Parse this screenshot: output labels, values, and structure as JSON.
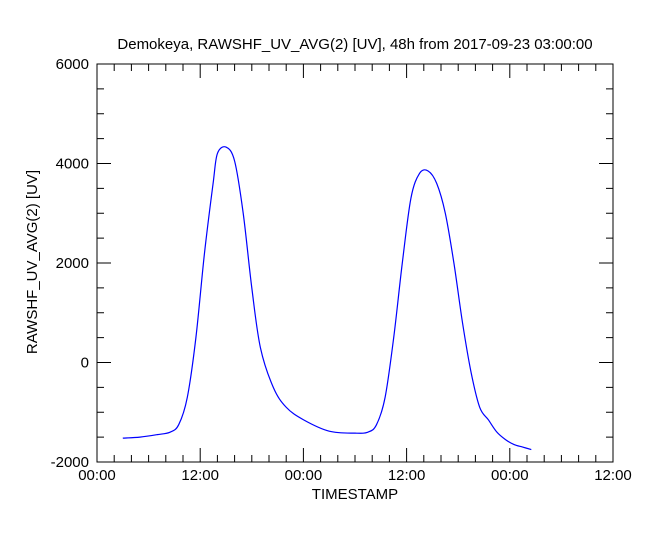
{
  "chart_data": {
    "type": "line",
    "title": "Demokeya, RAWSHF_UV_AVG(2) [UV], 48h from  2017-09-23 03:00:00",
    "xlabel": "TIMESTAMP",
    "ylabel": "RAWSHF_UV_AVG(2) [UV]",
    "ylim": [
      -2000,
      6000
    ],
    "yticks": [
      -2000,
      0,
      2000,
      4000,
      6000
    ],
    "yticklabels": [
      "-2000",
      "0",
      "2000",
      "4000",
      "6000"
    ],
    "xlim": [
      "2017-09-23 00:00",
      "2017-09-25 12:00"
    ],
    "xticks": [
      "2017-09-23 00:00",
      "2017-09-23 12:00",
      "2017-09-24 00:00",
      "2017-09-24 12:00",
      "2017-09-25 00:00",
      "2017-09-25 12:00"
    ],
    "xticklabels": [
      "00:00",
      "12:00",
      "00:00",
      "12:00",
      "00:00",
      "12:00"
    ],
    "grid": false,
    "line_color": "#0000ff",
    "series": [
      {
        "x": [
          "2017-09-23 03:00",
          "2017-09-23 05:00",
          "2017-09-23 07:00",
          "2017-09-23 08:30",
          "2017-09-23 09:30",
          "2017-09-23 10:30",
          "2017-09-23 11:30",
          "2017-09-23 12:30",
          "2017-09-23 13:30",
          "2017-09-23 14:00",
          "2017-09-23 15:00",
          "2017-09-23 16:00",
          "2017-09-23 17:00",
          "2017-09-23 18:00",
          "2017-09-23 19:00",
          "2017-09-23 20:30",
          "2017-09-23 22:00",
          "2017-09-24 00:00",
          "2017-09-24 03:00",
          "2017-09-24 06:00",
          "2017-09-24 07:30",
          "2017-09-24 08:30",
          "2017-09-24 09:30",
          "2017-09-24 10:30",
          "2017-09-24 11:30",
          "2017-09-24 12:30",
          "2017-09-24 13:30",
          "2017-09-24 14:30",
          "2017-09-24 15:30",
          "2017-09-24 16:30",
          "2017-09-24 17:30",
          "2017-09-24 18:30",
          "2017-09-24 19:30",
          "2017-09-24 20:30",
          "2017-09-24 21:30",
          "2017-09-24 22:30",
          "2017-09-24 23:30",
          "2017-09-25 00:30",
          "2017-09-25 01:30",
          "2017-09-25 02:30"
        ],
        "values": [
          -1520,
          -1500,
          -1450,
          -1400,
          -1250,
          -700,
          500,
          2200,
          3600,
          4200,
          4330,
          4050,
          3000,
          1500,
          300,
          -500,
          -900,
          -1150,
          -1380,
          -1420,
          -1400,
          -1250,
          -700,
          500,
          2000,
          3300,
          3800,
          3850,
          3600,
          3000,
          2000,
          800,
          -200,
          -900,
          -1150,
          -1400,
          -1550,
          -1650,
          -1700,
          -1750
        ]
      }
    ]
  }
}
